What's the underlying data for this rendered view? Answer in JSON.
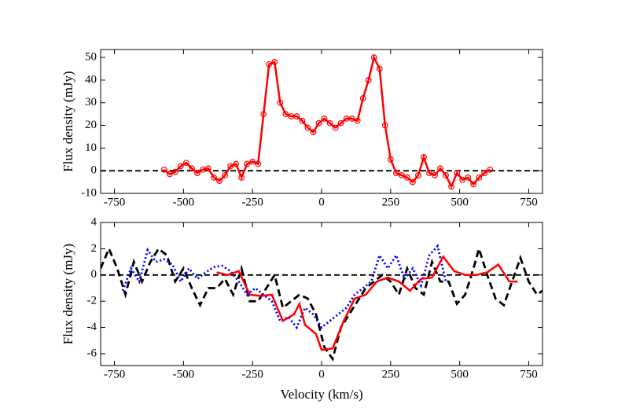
{
  "chart_data": [
    {
      "type": "line",
      "ylabel": "Flux density (mJy)",
      "xlim": [
        -800,
        800
      ],
      "xticks": [
        -750,
        -500,
        -250,
        0,
        250,
        500,
        750
      ],
      "ylim": [
        -10,
        53.5
      ],
      "yticks": [
        -10,
        0,
        10,
        20,
        30,
        40,
        50
      ],
      "hline": 0,
      "series": [
        {
          "color": "#ff0000",
          "style": "solid",
          "marker": "circle",
          "x": [
            -570,
            -550,
            -530,
            -510,
            -490,
            -470,
            -450,
            -430,
            -410,
            -390,
            -370,
            -350,
            -330,
            -310,
            -290,
            -270,
            -250,
            -230,
            -210,
            -190,
            -170,
            -150,
            -130,
            -110,
            -90,
            -70,
            -50,
            -30,
            -10,
            10,
            30,
            50,
            70,
            90,
            110,
            130,
            150,
            170,
            190,
            210,
            230,
            250,
            270,
            290,
            310,
            330,
            350,
            370,
            390,
            410,
            430,
            450,
            470,
            490,
            510,
            530,
            550,
            570,
            590,
            610
          ],
          "values": [
            0.5,
            -1.5,
            -0.5,
            2,
            3.5,
            1,
            -1,
            0.5,
            1,
            -3,
            -4.5,
            -2,
            2,
            3,
            -3,
            3,
            4,
            3,
            25,
            47,
            48,
            30,
            25,
            24,
            24,
            22,
            19,
            17,
            21,
            23,
            21,
            19,
            21,
            23,
            23,
            22,
            32,
            40,
            50,
            45,
            20,
            5,
            -1,
            -2,
            -3,
            -5,
            -2,
            6,
            -1,
            -2,
            1,
            -2,
            -7,
            -1,
            -4,
            -3,
            -6,
            -3,
            -1,
            0.5
          ]
        }
      ]
    },
    {
      "type": "line",
      "ylabel": "Flux density (mJy)",
      "xlabel": "Velocity (km/s)",
      "xlim": [
        -800,
        800
      ],
      "xticks": [
        -750,
        -500,
        -250,
        0,
        250,
        500,
        750
      ],
      "ylim": [
        -6.9,
        4
      ],
      "yticks": [
        -6,
        -4,
        -2,
        0,
        2,
        4
      ],
      "hline": 0,
      "series": [
        {
          "color": "#000000",
          "style": "dashed",
          "x": [
            -800,
            -770,
            -740,
            -710,
            -680,
            -650,
            -620,
            -590,
            -560,
            -530,
            -500,
            -470,
            -440,
            -410,
            -380,
            -350,
            -320,
            -290,
            -260,
            -230,
            -200,
            -170,
            -140,
            -110,
            -80,
            -50,
            -20,
            10,
            40,
            70,
            100,
            130,
            160,
            190,
            220,
            250,
            280,
            310,
            340,
            370,
            400,
            430,
            460,
            490,
            520,
            550,
            570,
            600,
            630,
            660,
            690,
            720,
            750,
            780,
            800
          ],
          "values": [
            0.5,
            2,
            0.5,
            -1.5,
            1,
            -0.5,
            1,
            2,
            1.5,
            -0.5,
            0.5,
            -1,
            -2.3,
            -1,
            -1,
            -0.3,
            -1.5,
            0.5,
            -2,
            -2,
            -1,
            0,
            -2.5,
            -2,
            -1.5,
            -1.8,
            -3,
            -5.5,
            -6.4,
            -4,
            -3,
            -2,
            -1,
            -0.5,
            0,
            -0.5,
            -1.5,
            0.5,
            -1,
            -1.5,
            1,
            -0.5,
            -0.5,
            -2.2,
            -1.5,
            0.5,
            2,
            0,
            -1.8,
            -2.3,
            -0.5,
            1.3,
            -0.5,
            -1.5,
            -1.2
          ]
        },
        {
          "color": "#0000ff",
          "style": "dotted",
          "x": [
            -720,
            -690,
            -660,
            -630,
            -600,
            -570,
            -540,
            -510,
            -480,
            -450,
            -420,
            -390,
            -360,
            -330,
            -300,
            -270,
            -240,
            -210,
            -180,
            -150,
            -120,
            -90,
            -60,
            -30,
            0,
            30,
            60,
            90,
            120,
            150,
            180,
            210,
            240,
            270,
            300,
            330,
            360,
            390,
            420,
            450
          ],
          "values": [
            -1.2,
            0.5,
            -0.5,
            1.9,
            1,
            1.2,
            0.8,
            -0.5,
            0.5,
            -0.3,
            0.2,
            0.6,
            0.7,
            0.3,
            -0.5,
            -1.5,
            -1,
            -1.5,
            -2,
            -3.5,
            -3.2,
            -4,
            -2.5,
            -3,
            -4,
            -3.5,
            -3,
            -2.5,
            -1.5,
            -1,
            -0.5,
            1.5,
            0.5,
            1.5,
            -0.3,
            0.5,
            -0.8,
            1.5,
            2.2,
            -0.5
          ]
        },
        {
          "color": "#ff0000",
          "style": "solid",
          "x": [
            -380,
            -340,
            -300,
            -260,
            -220,
            -180,
            -140,
            -100,
            -80,
            -60,
            -20,
            0,
            40,
            80,
            120,
            160,
            200,
            240,
            280,
            320,
            360,
            400,
            440,
            480,
            520,
            560,
            600,
            640,
            680,
            710
          ],
          "values": [
            0.2,
            0,
            0.3,
            -1.5,
            -1.6,
            -1.5,
            -3.5,
            -3,
            -2.2,
            -3.8,
            -4.5,
            -5.7,
            -5.6,
            -3.5,
            -1.8,
            -1.5,
            -0.5,
            -0.2,
            -0.5,
            -1.2,
            -0.3,
            -0.2,
            1.4,
            0.3,
            0,
            0,
            0.2,
            0.8,
            -0.5,
            -0.5
          ]
        }
      ]
    }
  ]
}
